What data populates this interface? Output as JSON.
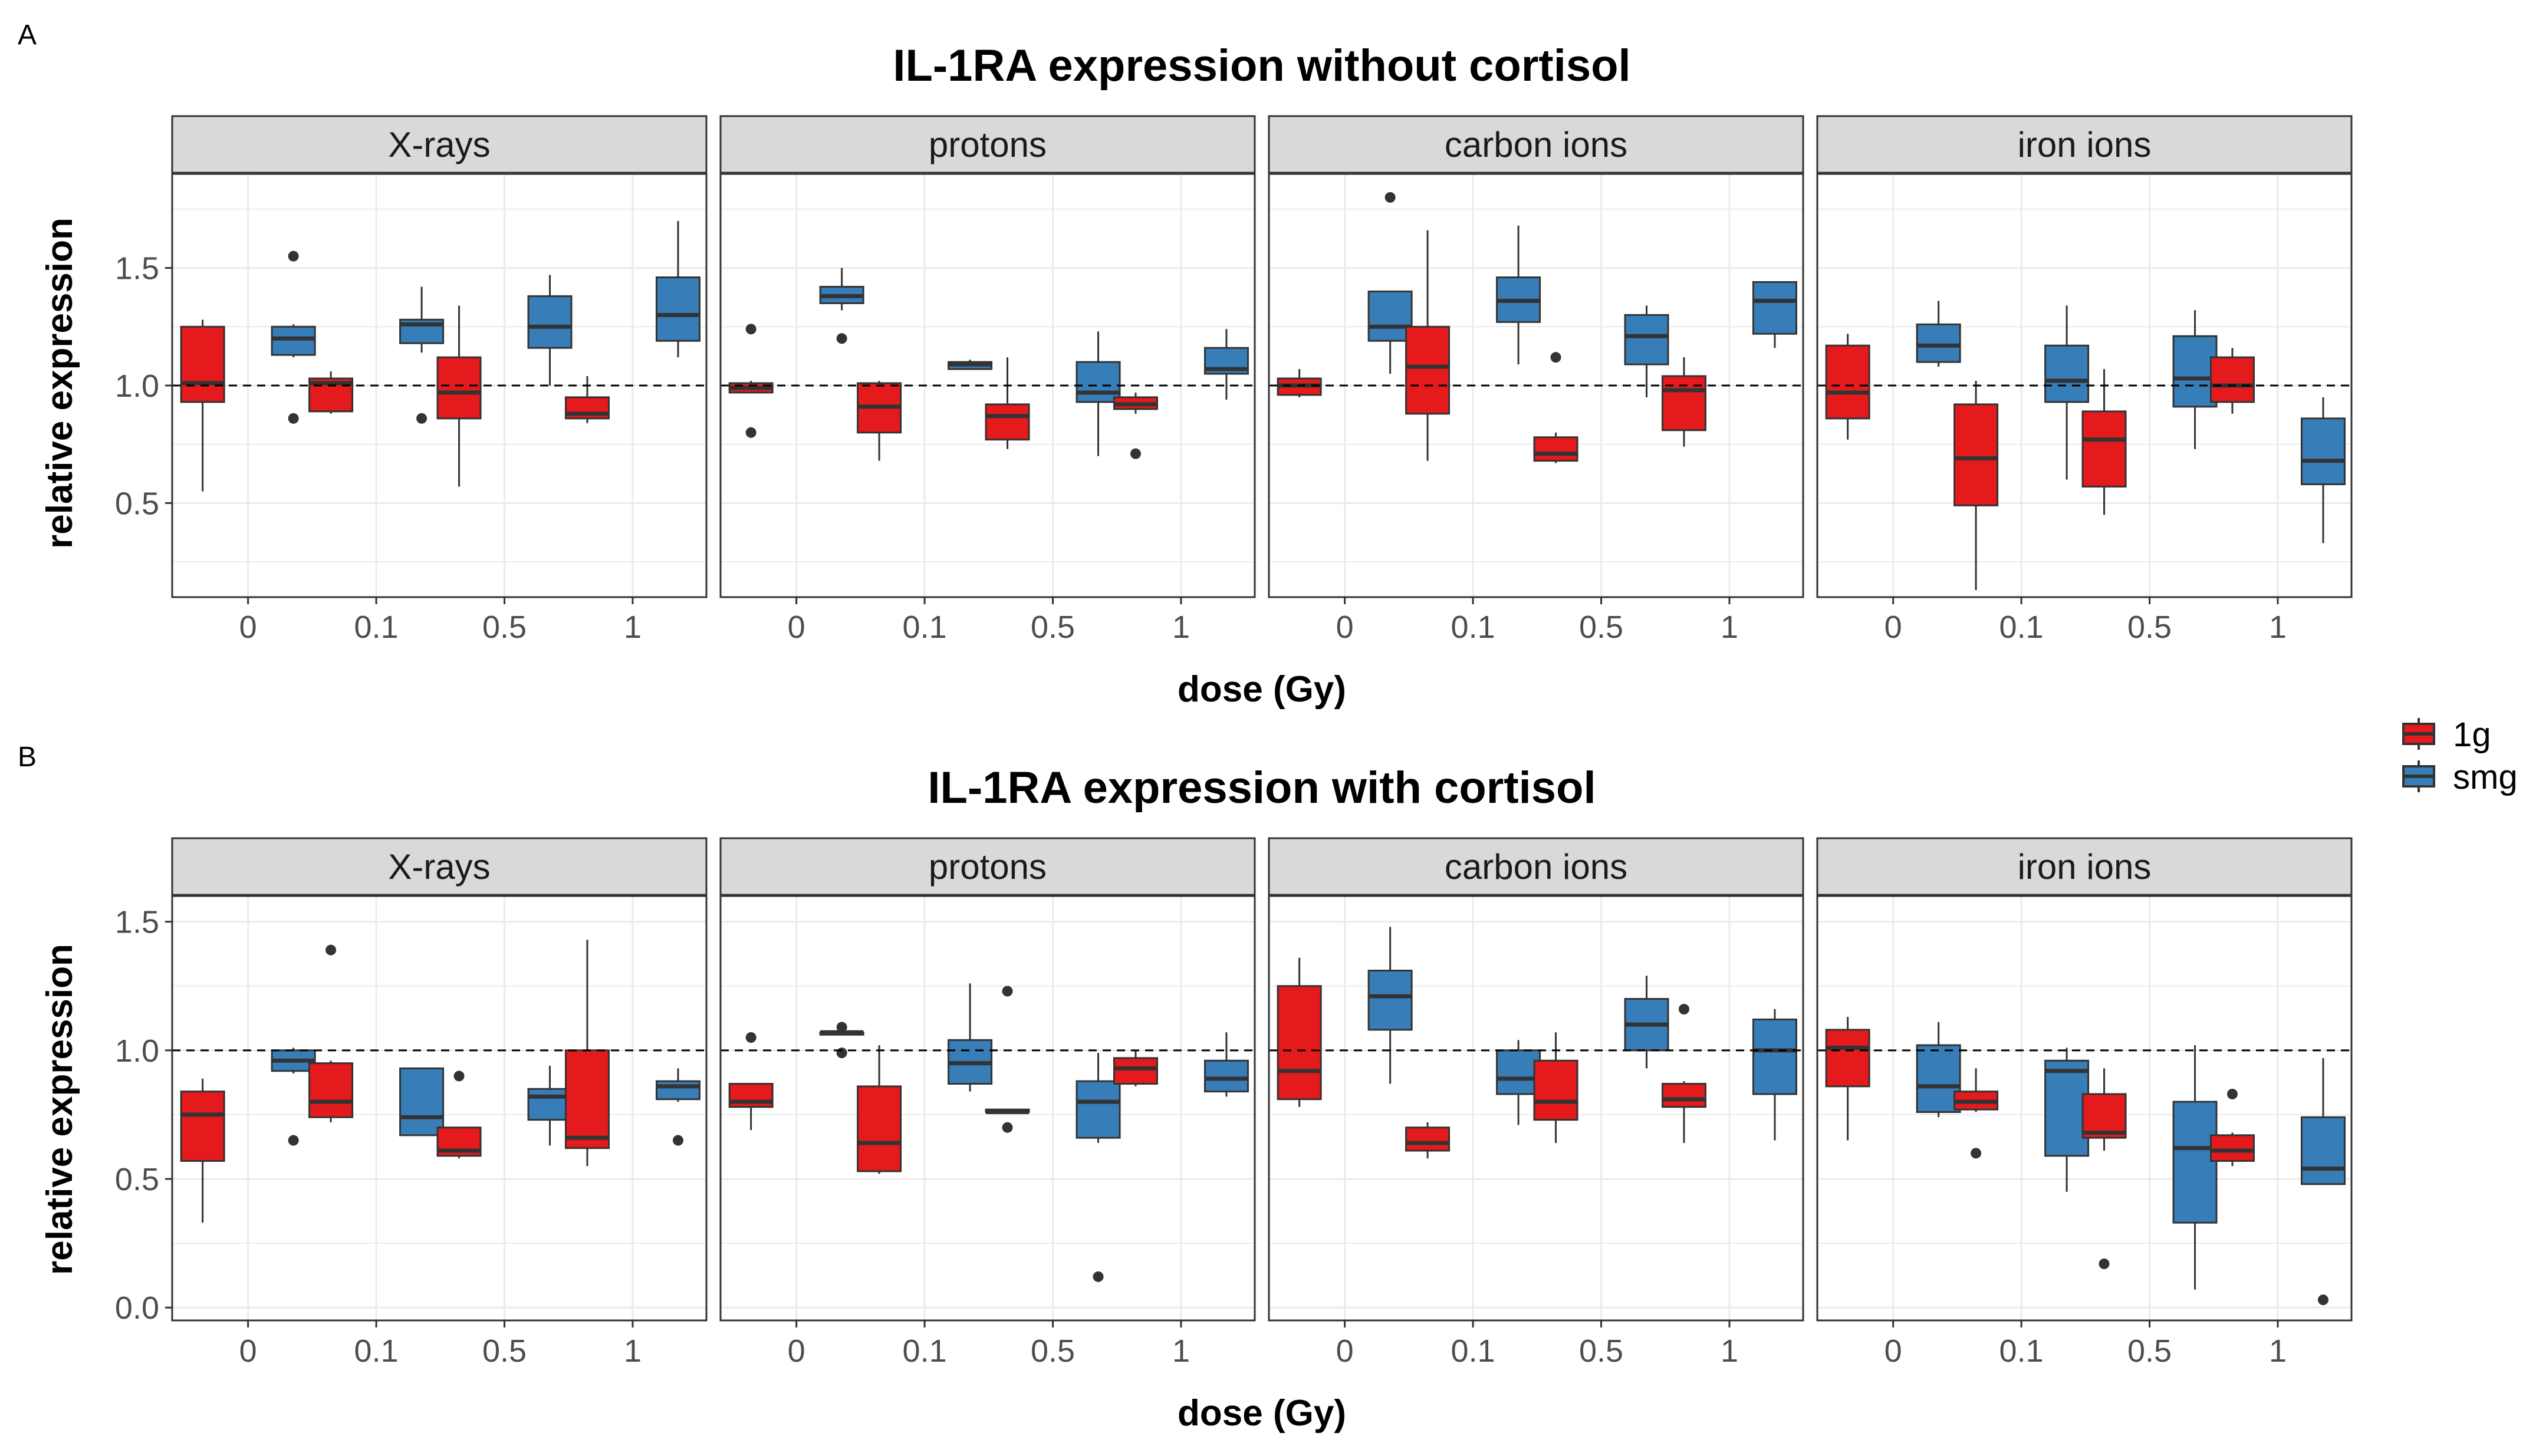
{
  "chart_data": [
    {
      "type": "boxplot",
      "panel_label": "A",
      "title": "IL-1RA expression without cortisol",
      "xlabel": "dose (Gy)",
      "ylabel": "relative expression",
      "ylim": [
        0.1,
        1.9
      ],
      "yticks": [
        0.5,
        1.0,
        1.5
      ],
      "ytick_labels": [
        "0.5",
        "1.0",
        "1.5"
      ],
      "reference_line": 1.0,
      "categories": [
        "0",
        "0.1",
        "0.5",
        "1"
      ],
      "facets": [
        {
          "name": "X-rays",
          "boxes": [
            {
              "dose": "0",
              "group": "1g",
              "min": 0.55,
              "q1": 0.93,
              "median": 1.01,
              "q3": 1.25,
              "max": 1.28,
              "outliers": []
            },
            {
              "dose": "0",
              "group": "smg",
              "min": 1.12,
              "q1": 1.13,
              "median": 1.2,
              "q3": 1.25,
              "max": 1.26,
              "outliers": [
                1.55,
                0.86
              ]
            },
            {
              "dose": "0.1",
              "group": "1g",
              "min": 0.88,
              "q1": 0.89,
              "median": 1.01,
              "q3": 1.03,
              "max": 1.06,
              "outliers": []
            },
            {
              "dose": "0.1",
              "group": "smg",
              "min": 1.14,
              "q1": 1.18,
              "median": 1.26,
              "q3": 1.28,
              "max": 1.42,
              "outliers": [
                0.86
              ]
            },
            {
              "dose": "0.5",
              "group": "1g",
              "min": 0.57,
              "q1": 0.86,
              "median": 0.97,
              "q3": 1.12,
              "max": 1.34,
              "outliers": []
            },
            {
              "dose": "0.5",
              "group": "smg",
              "min": 1.0,
              "q1": 1.16,
              "median": 1.25,
              "q3": 1.38,
              "max": 1.47,
              "outliers": []
            },
            {
              "dose": "1",
              "group": "1g",
              "min": 0.84,
              "q1": 0.86,
              "median": 0.88,
              "q3": 0.95,
              "max": 1.04,
              "outliers": []
            },
            {
              "dose": "1",
              "group": "smg",
              "min": 1.12,
              "q1": 1.19,
              "median": 1.3,
              "q3": 1.46,
              "max": 1.7,
              "outliers": []
            }
          ]
        },
        {
          "name": "protons",
          "boxes": [
            {
              "dose": "0",
              "group": "1g",
              "min": 0.97,
              "q1": 0.97,
              "median": 0.99,
              "q3": 1.01,
              "max": 1.02,
              "outliers": [
                1.24,
                0.8
              ]
            },
            {
              "dose": "0",
              "group": "smg",
              "min": 1.32,
              "q1": 1.35,
              "median": 1.38,
              "q3": 1.42,
              "max": 1.5,
              "outliers": [
                1.2
              ]
            },
            {
              "dose": "0.1",
              "group": "1g",
              "min": 0.68,
              "q1": 0.8,
              "median": 0.91,
              "q3": 1.01,
              "max": 1.02,
              "outliers": []
            },
            {
              "dose": "0.1",
              "group": "smg",
              "min": 1.07,
              "q1": 1.07,
              "median": 1.09,
              "q3": 1.1,
              "max": 1.11,
              "outliers": []
            },
            {
              "dose": "0.5",
              "group": "1g",
              "min": 0.73,
              "q1": 0.77,
              "median": 0.87,
              "q3": 0.92,
              "max": 1.12,
              "outliers": []
            },
            {
              "dose": "0.5",
              "group": "smg",
              "min": 0.7,
              "q1": 0.93,
              "median": 0.97,
              "q3": 1.1,
              "max": 1.23,
              "outliers": []
            },
            {
              "dose": "1",
              "group": "1g",
              "min": 0.88,
              "q1": 0.9,
              "median": 0.92,
              "q3": 0.95,
              "max": 0.97,
              "outliers": [
                0.71
              ]
            },
            {
              "dose": "1",
              "group": "smg",
              "min": 0.94,
              "q1": 1.05,
              "median": 1.07,
              "q3": 1.16,
              "max": 1.24,
              "outliers": []
            }
          ]
        },
        {
          "name": "carbon ions",
          "boxes": [
            {
              "dose": "0",
              "group": "1g",
              "min": 0.95,
              "q1": 0.96,
              "median": 1.0,
              "q3": 1.03,
              "max": 1.07,
              "outliers": []
            },
            {
              "dose": "0",
              "group": "smg",
              "min": 1.05,
              "q1": 1.19,
              "median": 1.25,
              "q3": 1.4,
              "max": 1.4,
              "outliers": [
                1.8
              ]
            },
            {
              "dose": "0.1",
              "group": "1g",
              "min": 0.68,
              "q1": 0.88,
              "median": 1.08,
              "q3": 1.25,
              "max": 1.66,
              "outliers": []
            },
            {
              "dose": "0.1",
              "group": "smg",
              "min": 1.09,
              "q1": 1.27,
              "median": 1.36,
              "q3": 1.46,
              "max": 1.68,
              "outliers": []
            },
            {
              "dose": "0.5",
              "group": "1g",
              "min": 0.67,
              "q1": 0.68,
              "median": 0.71,
              "q3": 0.78,
              "max": 0.8,
              "outliers": [
                1.12
              ]
            },
            {
              "dose": "0.5",
              "group": "smg",
              "min": 0.95,
              "q1": 1.09,
              "median": 1.21,
              "q3": 1.3,
              "max": 1.34,
              "outliers": []
            },
            {
              "dose": "1",
              "group": "1g",
              "min": 0.74,
              "q1": 0.81,
              "median": 0.98,
              "q3": 1.04,
              "max": 1.12,
              "outliers": []
            },
            {
              "dose": "1",
              "group": "smg",
              "min": 1.16,
              "q1": 1.22,
              "median": 1.36,
              "q3": 1.44,
              "max": 1.44,
              "outliers": []
            }
          ]
        },
        {
          "name": "iron ions",
          "boxes": [
            {
              "dose": "0",
              "group": "1g",
              "min": 0.77,
              "q1": 0.86,
              "median": 0.97,
              "q3": 1.17,
              "max": 1.22,
              "outliers": []
            },
            {
              "dose": "0",
              "group": "smg",
              "min": 1.08,
              "q1": 1.1,
              "median": 1.17,
              "q3": 1.26,
              "max": 1.36,
              "outliers": []
            },
            {
              "dose": "0.1",
              "group": "1g",
              "min": 0.13,
              "q1": 0.49,
              "median": 0.69,
              "q3": 0.92,
              "max": 1.02,
              "outliers": []
            },
            {
              "dose": "0.1",
              "group": "smg",
              "min": 0.6,
              "q1": 0.93,
              "median": 1.02,
              "q3": 1.17,
              "max": 1.34,
              "outliers": []
            },
            {
              "dose": "0.5",
              "group": "1g",
              "min": 0.45,
              "q1": 0.57,
              "median": 0.77,
              "q3": 0.89,
              "max": 1.07,
              "outliers": []
            },
            {
              "dose": "0.5",
              "group": "smg",
              "min": 0.73,
              "q1": 0.91,
              "median": 1.03,
              "q3": 1.21,
              "max": 1.32,
              "outliers": []
            },
            {
              "dose": "1",
              "group": "1g",
              "min": 0.88,
              "q1": 0.93,
              "median": 1.0,
              "q3": 1.12,
              "max": 1.16,
              "outliers": []
            },
            {
              "dose": "1",
              "group": "smg",
              "min": 0.33,
              "q1": 0.58,
              "median": 0.68,
              "q3": 0.86,
              "max": 0.95,
              "outliers": []
            }
          ]
        }
      ]
    },
    {
      "type": "boxplot",
      "panel_label": "B",
      "title": "IL-1RA expression with cortisol",
      "xlabel": "dose (Gy)",
      "ylabel": "relative expression",
      "ylim": [
        -0.05,
        1.6
      ],
      "yticks": [
        0.0,
        0.5,
        1.0,
        1.5
      ],
      "ytick_labels": [
        "0.0",
        "0.5",
        "1.0",
        "1.5"
      ],
      "reference_line": 1.0,
      "categories": [
        "0",
        "0.1",
        "0.5",
        "1"
      ],
      "facets": [
        {
          "name": "X-rays",
          "boxes": [
            {
              "dose": "0",
              "group": "1g",
              "min": 0.33,
              "q1": 0.57,
              "median": 0.75,
              "q3": 0.84,
              "max": 0.89,
              "outliers": []
            },
            {
              "dose": "0",
              "group": "smg",
              "min": 0.91,
              "q1": 0.92,
              "median": 0.96,
              "q3": 1.0,
              "max": 1.01,
              "outliers": [
                0.65
              ]
            },
            {
              "dose": "0.1",
              "group": "1g",
              "min": 0.72,
              "q1": 0.74,
              "median": 0.8,
              "q3": 0.95,
              "max": 0.96,
              "outliers": [
                1.39
              ]
            },
            {
              "dose": "0.1",
              "group": "smg",
              "min": 0.67,
              "q1": 0.67,
              "median": 0.74,
              "q3": 0.93,
              "max": 0.93,
              "outliers": []
            },
            {
              "dose": "0.5",
              "group": "1g",
              "min": 0.58,
              "q1": 0.59,
              "median": 0.61,
              "q3": 0.7,
              "max": 0.7,
              "outliers": [
                0.9
              ]
            },
            {
              "dose": "0.5",
              "group": "smg",
              "min": 0.63,
              "q1": 0.73,
              "median": 0.82,
              "q3": 0.85,
              "max": 0.94,
              "outliers": []
            },
            {
              "dose": "1",
              "group": "1g",
              "min": 0.55,
              "q1": 0.62,
              "median": 0.66,
              "q3": 1.0,
              "max": 1.43,
              "outliers": []
            },
            {
              "dose": "1",
              "group": "smg",
              "min": 0.8,
              "q1": 0.81,
              "median": 0.86,
              "q3": 0.88,
              "max": 0.93,
              "outliers": [
                0.65
              ]
            }
          ]
        },
        {
          "name": "protons",
          "boxes": [
            {
              "dose": "0",
              "group": "1g",
              "min": 0.69,
              "q1": 0.78,
              "median": 0.8,
              "q3": 0.87,
              "max": 0.87,
              "outliers": [
                1.05
              ]
            },
            {
              "dose": "0",
              "group": "smg",
              "min": 1.07,
              "q1": 1.07,
              "median": 1.07,
              "q3": 1.07,
              "max": 1.07,
              "outliers": [
                1.09,
                0.99
              ]
            },
            {
              "dose": "0.1",
              "group": "1g",
              "min": 0.52,
              "q1": 0.53,
              "median": 0.64,
              "q3": 0.86,
              "max": 1.02,
              "outliers": []
            },
            {
              "dose": "0.1",
              "group": "smg",
              "min": 0.84,
              "q1": 0.87,
              "median": 0.95,
              "q3": 1.04,
              "max": 1.26,
              "outliers": []
            },
            {
              "dose": "0.5",
              "group": "1g",
              "min": 0.76,
              "q1": 0.76,
              "median": 0.76,
              "q3": 0.77,
              "max": 0.77,
              "outliers": [
                1.23,
                0.7
              ]
            },
            {
              "dose": "0.5",
              "group": "smg",
              "min": 0.64,
              "q1": 0.66,
              "median": 0.8,
              "q3": 0.88,
              "max": 0.99,
              "outliers": [
                0.12
              ]
            },
            {
              "dose": "1",
              "group": "1g",
              "min": 0.86,
              "q1": 0.87,
              "median": 0.93,
              "q3": 0.97,
              "max": 1.0,
              "outliers": []
            },
            {
              "dose": "1",
              "group": "smg",
              "min": 0.82,
              "q1": 0.84,
              "median": 0.89,
              "q3": 0.96,
              "max": 1.07,
              "outliers": []
            }
          ]
        },
        {
          "name": "carbon ions",
          "boxes": [
            {
              "dose": "0",
              "group": "1g",
              "min": 0.78,
              "q1": 0.81,
              "median": 0.92,
              "q3": 1.25,
              "max": 1.36,
              "outliers": []
            },
            {
              "dose": "0",
              "group": "smg",
              "min": 0.87,
              "q1": 1.08,
              "median": 1.21,
              "q3": 1.31,
              "max": 1.48,
              "outliers": []
            },
            {
              "dose": "0.1",
              "group": "1g",
              "min": 0.58,
              "q1": 0.61,
              "median": 0.64,
              "q3": 0.7,
              "max": 0.72,
              "outliers": []
            },
            {
              "dose": "0.1",
              "group": "smg",
              "min": 0.71,
              "q1": 0.83,
              "median": 0.89,
              "q3": 1.0,
              "max": 1.04,
              "outliers": []
            },
            {
              "dose": "0.5",
              "group": "1g",
              "min": 0.64,
              "q1": 0.73,
              "median": 0.8,
              "q3": 0.96,
              "max": 1.07,
              "outliers": []
            },
            {
              "dose": "0.5",
              "group": "smg",
              "min": 0.93,
              "q1": 1.0,
              "median": 1.1,
              "q3": 1.2,
              "max": 1.29,
              "outliers": []
            },
            {
              "dose": "1",
              "group": "1g",
              "min": 0.64,
              "q1": 0.78,
              "median": 0.81,
              "q3": 0.87,
              "max": 0.88,
              "outliers": [
                1.16
              ]
            },
            {
              "dose": "1",
              "group": "smg",
              "min": 0.65,
              "q1": 0.83,
              "median": 1.0,
              "q3": 1.12,
              "max": 1.16,
              "outliers": []
            }
          ]
        },
        {
          "name": "iron ions",
          "boxes": [
            {
              "dose": "0",
              "group": "1g",
              "min": 0.65,
              "q1": 0.86,
              "median": 1.01,
              "q3": 1.08,
              "max": 1.13,
              "outliers": []
            },
            {
              "dose": "0",
              "group": "smg",
              "min": 0.74,
              "q1": 0.76,
              "median": 0.86,
              "q3": 1.02,
              "max": 1.11,
              "outliers": []
            },
            {
              "dose": "0.1",
              "group": "1g",
              "min": 0.76,
              "q1": 0.77,
              "median": 0.8,
              "q3": 0.84,
              "max": 0.93,
              "outliers": [
                0.6
              ]
            },
            {
              "dose": "0.1",
              "group": "smg",
              "min": 0.45,
              "q1": 0.59,
              "median": 0.92,
              "q3": 0.96,
              "max": 1.01,
              "outliers": []
            },
            {
              "dose": "0.5",
              "group": "1g",
              "min": 0.61,
              "q1": 0.66,
              "median": 0.68,
              "q3": 0.83,
              "max": 0.93,
              "outliers": [
                0.17
              ]
            },
            {
              "dose": "0.5",
              "group": "smg",
              "min": 0.07,
              "q1": 0.33,
              "median": 0.62,
              "q3": 0.8,
              "max": 1.02,
              "outliers": []
            },
            {
              "dose": "1",
              "group": "1g",
              "min": 0.55,
              "q1": 0.57,
              "median": 0.61,
              "q3": 0.67,
              "max": 0.68,
              "outliers": [
                0.83
              ]
            },
            {
              "dose": "1",
              "group": "smg",
              "min": 0.48,
              "q1": 0.48,
              "median": 0.54,
              "q3": 0.74,
              "max": 0.97,
              "outliers": [
                0.03
              ]
            }
          ]
        }
      ]
    }
  ],
  "legend": {
    "items": [
      {
        "label": "1g",
        "color": "#e41a1c"
      },
      {
        "label": "smg",
        "color": "#377eb8"
      }
    ],
    "position": "right"
  },
  "colors": {
    "1g": "#e41a1c",
    "smg": "#377eb8",
    "strip_bg": "#d9d9d9",
    "grid": "#ebebeb",
    "panel_border": "#333333"
  }
}
